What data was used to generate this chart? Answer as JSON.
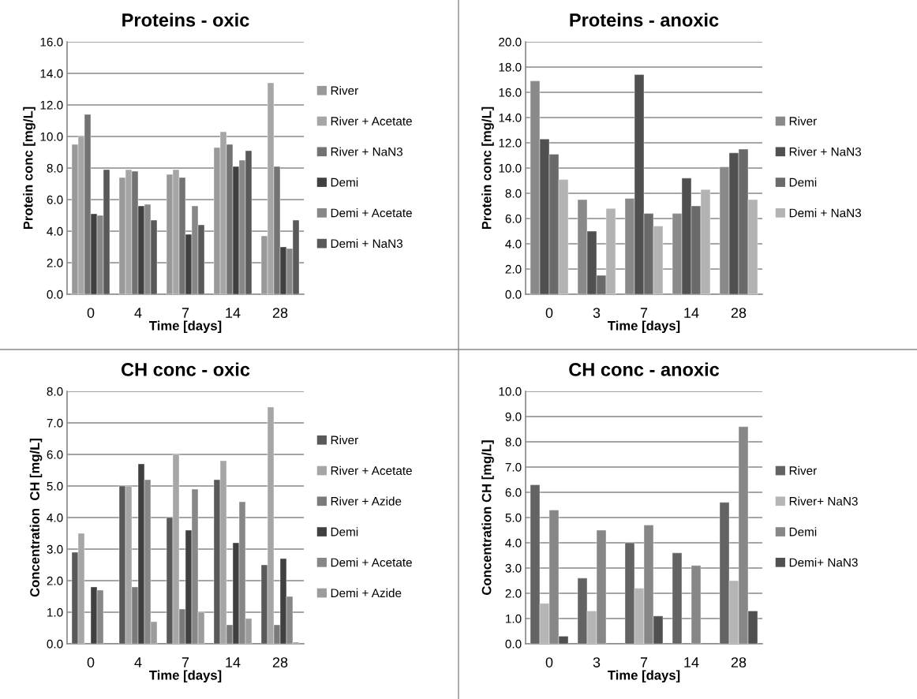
{
  "chart_data": [
    {
      "type": "bar",
      "title": "Proteins - oxic",
      "xlabel": "Time [days]",
      "ylabel": "Protein conc [mg/L]",
      "categories": [
        "0",
        "4",
        "7",
        "14",
        "28"
      ],
      "ylim": [
        0,
        16
      ],
      "yticks": [
        {
          "value": 0,
          "label": "0.0"
        },
        {
          "value": 2,
          "label": "2.0"
        },
        {
          "value": 4,
          "label": "4.0"
        },
        {
          "value": 6,
          "label": "6.0"
        },
        {
          "value": 8,
          "label": "8.0"
        },
        {
          "value": 10,
          "label": "10.0"
        },
        {
          "value": 12,
          "label": "12.0"
        },
        {
          "value": 14,
          "label": "14.0"
        },
        {
          "value": 16,
          "label": "16.0"
        }
      ],
      "grid": "y",
      "legend": "right",
      "series": [
        {
          "name": "River",
          "color": "#999999",
          "values": [
            9.5,
            7.4,
            7.6,
            9.3,
            3.7
          ]
        },
        {
          "name": "River + Acetate",
          "color": "#a6a6a6",
          "values": [
            10.0,
            7.9,
            7.9,
            10.3,
            13.4
          ]
        },
        {
          "name": "River + NaN3",
          "color": "#737373",
          "values": [
            11.4,
            7.8,
            7.4,
            9.5,
            8.1
          ]
        },
        {
          "name": "Demi",
          "color": "#404040",
          "values": [
            5.1,
            5.6,
            3.8,
            8.1,
            3.0
          ]
        },
        {
          "name": "Demi + Acetate",
          "color": "#878787",
          "values": [
            5.0,
            5.7,
            5.6,
            8.5,
            2.9
          ]
        },
        {
          "name": "Demi + NaN3",
          "color": "#595959",
          "values": [
            7.9,
            4.7,
            4.4,
            9.1,
            4.7
          ]
        }
      ]
    },
    {
      "type": "bar",
      "title": "Proteins - anoxic",
      "xlabel": "Time [days]",
      "ylabel": "Protein conc [mg/L]",
      "categories": [
        "0",
        "3",
        "7",
        "14",
        "28"
      ],
      "ylim": [
        0,
        20
      ],
      "yticks": [
        {
          "value": 0,
          "label": "0.0"
        },
        {
          "value": 2,
          "label": "2.0"
        },
        {
          "value": 4,
          "label": "4.0"
        },
        {
          "value": 6,
          "label": "6.0"
        },
        {
          "value": 8,
          "label": "8.0"
        },
        {
          "value": 10,
          "label": "10.0"
        },
        {
          "value": 12,
          "label": "12.0"
        },
        {
          "value": 14,
          "label": "14.0"
        },
        {
          "value": 16,
          "label": "16.0"
        },
        {
          "value": 18,
          "label": "18.0"
        },
        {
          "value": 20,
          "label": "20.0"
        }
      ],
      "grid": "y",
      "legend": "right",
      "series": [
        {
          "name": "River",
          "color": "#8a8a8a",
          "values": [
            16.9,
            7.5,
            7.6,
            6.4,
            10.1
          ]
        },
        {
          "name": "River + NaN3",
          "color": "#505050",
          "values": [
            12.3,
            5.0,
            17.4,
            9.2,
            11.2
          ]
        },
        {
          "name": "Demi",
          "color": "#6a6a6a",
          "values": [
            11.1,
            1.5,
            6.4,
            7.0,
            11.5
          ]
        },
        {
          "name": "Demi + NaN3",
          "color": "#b3b3b3",
          "values": [
            9.1,
            6.8,
            5.4,
            8.3,
            7.5
          ]
        }
      ]
    },
    {
      "type": "bar",
      "title": "CH conc - oxic",
      "xlabel": "Time [days]",
      "ylabel": "Concentration  CH [mg/L]",
      "categories": [
        "0",
        "4",
        "7",
        "14",
        "28"
      ],
      "ylim": [
        0,
        8
      ],
      "yticks": [
        {
          "value": 0,
          "label": "0.0"
        },
        {
          "value": 1,
          "label": "1.0"
        },
        {
          "value": 2,
          "label": "2.0"
        },
        {
          "value": 3,
          "label": "3.0"
        },
        {
          "value": 4,
          "label": "4.0"
        },
        {
          "value": 5,
          "label": "5.0"
        },
        {
          "value": 6,
          "label": "6.0"
        },
        {
          "value": 7,
          "label": "7.0"
        },
        {
          "value": 8,
          "label": "8.0"
        }
      ],
      "grid": "y",
      "legend": "right",
      "series": [
        {
          "name": "River",
          "color": "#595959",
          "values": [
            2.9,
            5.0,
            4.0,
            5.2,
            2.5
          ]
        },
        {
          "name": "River + Acetate",
          "color": "#a6a6a6",
          "values": [
            3.5,
            5.0,
            6.0,
            5.8,
            7.5
          ]
        },
        {
          "name": "River + Azide",
          "color": "#7a7a7a",
          "values": [
            null,
            1.8,
            1.1,
            0.6,
            0.6
          ]
        },
        {
          "name": "Demi",
          "color": "#404040",
          "values": [
            1.8,
            5.7,
            3.6,
            3.2,
            2.7
          ]
        },
        {
          "name": "Demi + Acetate",
          "color": "#878787",
          "values": [
            1.7,
            5.2,
            4.9,
            4.5,
            1.5
          ]
        },
        {
          "name": "Demi + Azide",
          "color": "#9c9c9c",
          "values": [
            null,
            0.7,
            1.0,
            0.8,
            0.05
          ]
        }
      ]
    },
    {
      "type": "bar",
      "title": "CH conc - anoxic",
      "xlabel": "Time [days]",
      "ylabel": "Concentration CH [mg/L]",
      "categories": [
        "0",
        "3",
        "7",
        "14",
        "28"
      ],
      "ylim": [
        0,
        10
      ],
      "yticks": [
        {
          "value": 0,
          "label": "0.0"
        },
        {
          "value": 1,
          "label": "1.0"
        },
        {
          "value": 2,
          "label": "2.0"
        },
        {
          "value": 3,
          "label": "3.0"
        },
        {
          "value": 4,
          "label": "4.0"
        },
        {
          "value": 5,
          "label": "5.0"
        },
        {
          "value": 6,
          "label": "6.0"
        },
        {
          "value": 7,
          "label": "7.0"
        },
        {
          "value": 8,
          "label": "8.0"
        },
        {
          "value": 9,
          "label": "9.0"
        },
        {
          "value": 10,
          "label": "10.0"
        }
      ],
      "grid": "y",
      "legend": "right",
      "series": [
        {
          "name": "River",
          "color": "#636363",
          "values": [
            6.3,
            2.6,
            4.0,
            3.6,
            5.6
          ]
        },
        {
          "name": "River+ NaN3",
          "color": "#b5b5b5",
          "values": [
            1.6,
            1.3,
            2.2,
            null,
            2.5
          ]
        },
        {
          "name": "Demi",
          "color": "#878787",
          "values": [
            5.3,
            4.5,
            4.7,
            3.1,
            8.6
          ]
        },
        {
          "name": "Demi+ NaN3",
          "color": "#505050",
          "values": [
            0.3,
            null,
            1.1,
            null,
            1.3
          ]
        }
      ]
    }
  ]
}
